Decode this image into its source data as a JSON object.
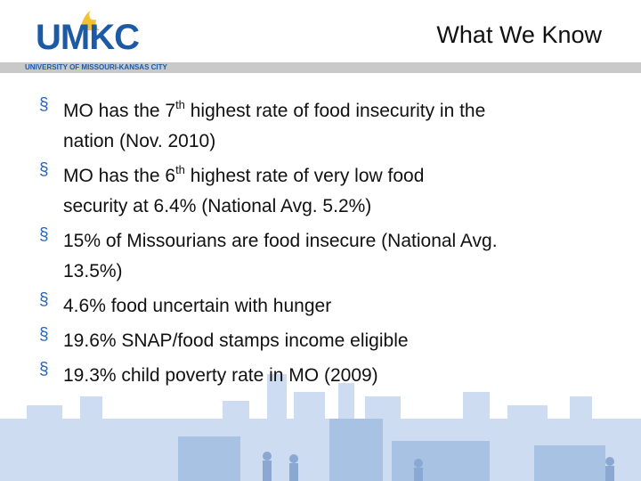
{
  "header": {
    "logo": "UMKC",
    "university": "UNIVERSITY OF MISSOURI-KANSAS CITY",
    "title": "What We Know"
  },
  "bullet_marker": "§",
  "bullets": [
    {
      "lines": [
        [
          "MO has the 7",
          {
            "sup": "th"
          },
          " highest rate of food insecurity in the"
        ],
        [
          "nation (Nov. 2010)"
        ]
      ]
    },
    {
      "lines": [
        [
          "MO has the 6",
          {
            "sup": "th"
          },
          " highest rate of very low food"
        ],
        [
          "security at 6.4% (National Avg. 5.2%)"
        ]
      ]
    },
    {
      "lines": [
        [
          "15% of Missourians are food insecure (National Avg."
        ],
        [
          "13.5%)"
        ]
      ]
    },
    {
      "lines": [
        [
          "4.6% food uncertain with hunger"
        ]
      ]
    },
    {
      "lines": [
        [
          "19.6% SNAP/food stamps income eligible"
        ]
      ]
    },
    {
      "lines": [
        [
          "19.3% child poverty rate in MO (2009)"
        ]
      ]
    }
  ]
}
